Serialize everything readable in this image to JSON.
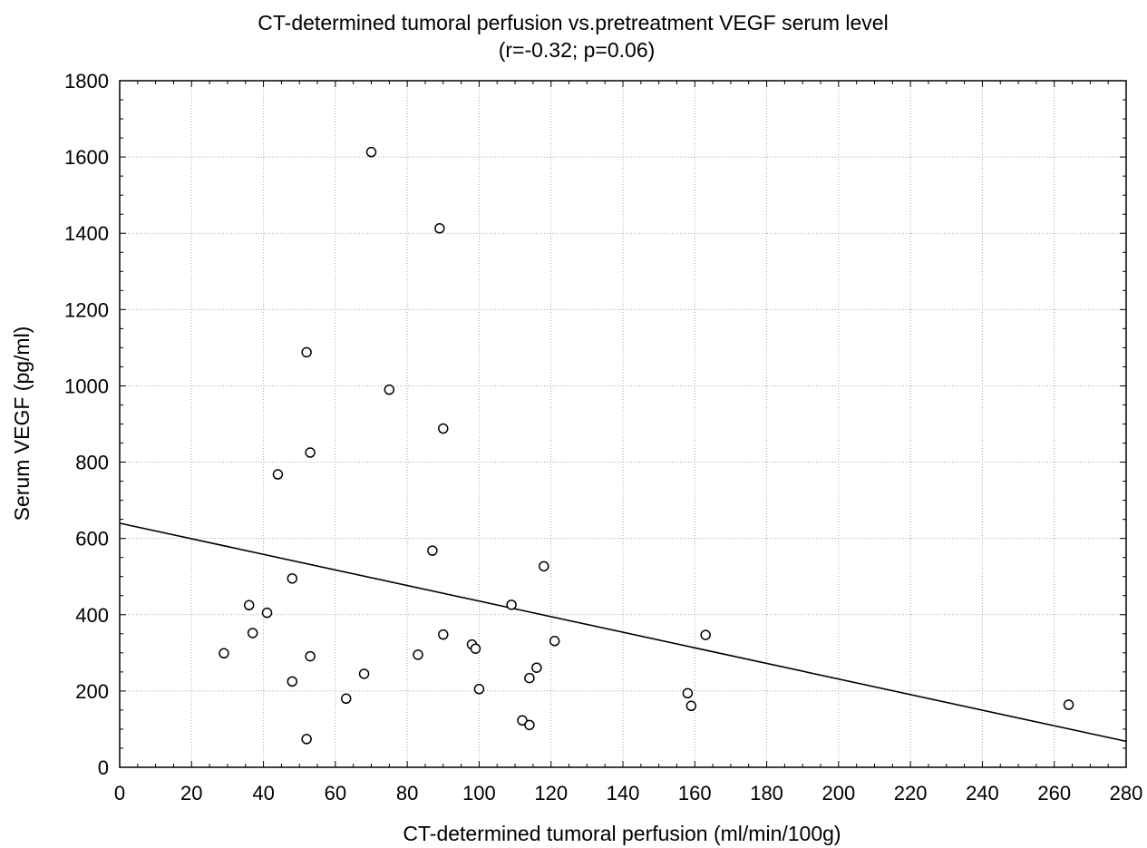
{
  "chart_data": {
    "type": "scatter",
    "title": "CT-determined tumoral perfusion vs.pretreatment VEGF serum level",
    "subtitle": "(r=-0.32; p=0.06)",
    "xlabel": "CT-determined tumoral perfusion (ml/min/100g)",
    "ylabel": "Serum VEGF (pg/ml)",
    "xlim": [
      0,
      280
    ],
    "ylim": [
      0,
      1800
    ],
    "xticks": [
      0,
      20,
      40,
      60,
      80,
      100,
      120,
      140,
      160,
      180,
      200,
      220,
      240,
      260,
      280
    ],
    "yticks": [
      0,
      200,
      400,
      600,
      800,
      1000,
      1200,
      1400,
      1600,
      1800
    ],
    "grid": true,
    "legend": "none",
    "points": [
      {
        "x": 70,
        "y": 1613
      },
      {
        "x": 89,
        "y": 1413
      },
      {
        "x": 52,
        "y": 1088
      },
      {
        "x": 75,
        "y": 990
      },
      {
        "x": 90,
        "y": 888
      },
      {
        "x": 53,
        "y": 825
      },
      {
        "x": 44,
        "y": 768
      },
      {
        "x": 87,
        "y": 568
      },
      {
        "x": 118,
        "y": 527
      },
      {
        "x": 48,
        "y": 495
      },
      {
        "x": 36,
        "y": 425
      },
      {
        "x": 109,
        "y": 426
      },
      {
        "x": 41,
        "y": 405
      },
      {
        "x": 37,
        "y": 352
      },
      {
        "x": 90,
        "y": 348
      },
      {
        "x": 163,
        "y": 347
      },
      {
        "x": 121,
        "y": 331
      },
      {
        "x": 98,
        "y": 322
      },
      {
        "x": 99,
        "y": 311
      },
      {
        "x": 29,
        "y": 299
      },
      {
        "x": 83,
        "y": 295
      },
      {
        "x": 53,
        "y": 291
      },
      {
        "x": 116,
        "y": 261
      },
      {
        "x": 68,
        "y": 245
      },
      {
        "x": 114,
        "y": 234
      },
      {
        "x": 48,
        "y": 225
      },
      {
        "x": 100,
        "y": 205
      },
      {
        "x": 158,
        "y": 194
      },
      {
        "x": 63,
        "y": 180
      },
      {
        "x": 264,
        "y": 164
      },
      {
        "x": 159,
        "y": 161
      },
      {
        "x": 112,
        "y": 123
      },
      {
        "x": 114,
        "y": 111
      },
      {
        "x": 52,
        "y": 74
      }
    ],
    "regression_line": [
      {
        "x": 0,
        "y": 640
      },
      {
        "x": 280,
        "y": 68
      }
    ]
  }
}
